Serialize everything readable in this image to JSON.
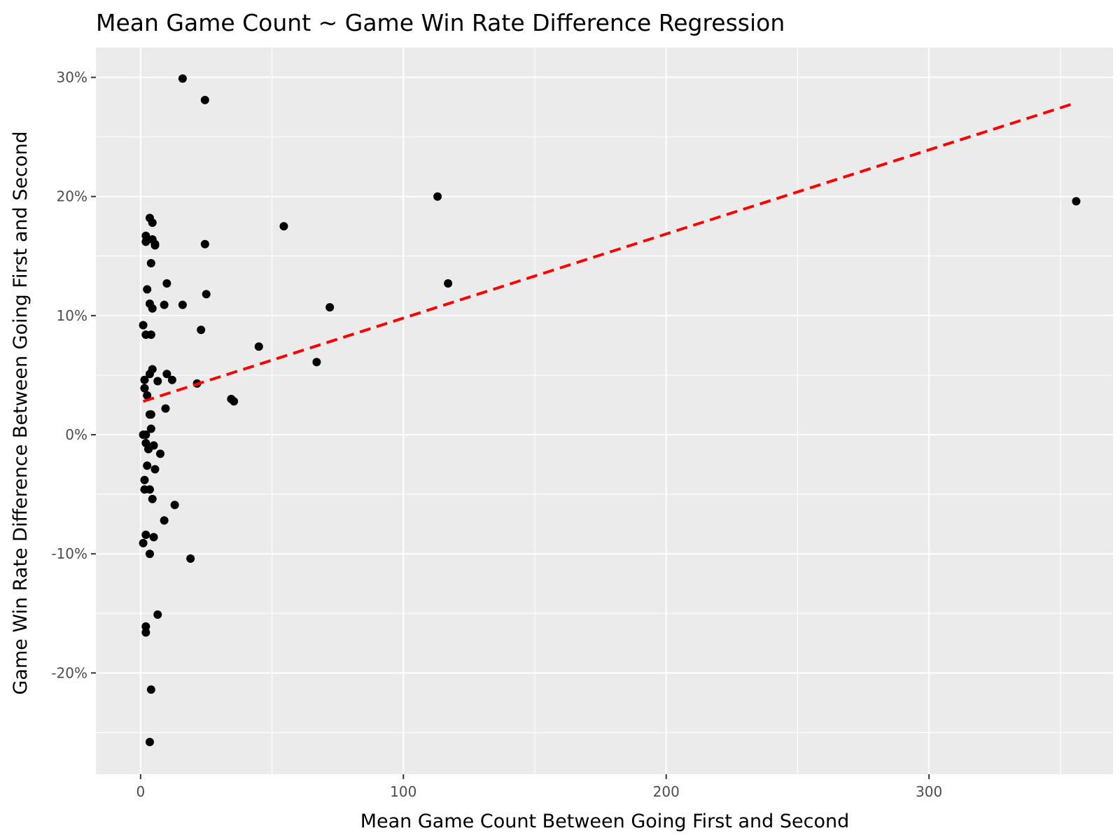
{
  "chart_data": {
    "type": "scatter",
    "title": "Mean Game Count ~ Game Win Rate Difference Regression",
    "xlabel": "Mean Game Count Between Going First and Second",
    "ylabel": "Game Win Rate Difference Between Going First and Second",
    "xlim": [
      -17,
      370
    ],
    "ylim": [
      -28.5,
      32.5
    ],
    "x_ticks": [
      0,
      100,
      200,
      300
    ],
    "x_minor_ticks": [
      50,
      150,
      250,
      350
    ],
    "y_ticks": [
      -20,
      -10,
      0,
      10,
      20,
      30
    ],
    "y_tick_labels": [
      "-20%",
      "-10%",
      "0%",
      "10%",
      "20%",
      "30%"
    ],
    "y_minor_ticks": [
      -25,
      -15,
      -5,
      5,
      15,
      25
    ],
    "grid": true,
    "panel_background": "#ebebeb",
    "grid_color": "#ffffff",
    "point_color": "#000000",
    "points": [
      [
        16,
        29.9
      ],
      [
        24.5,
        28.1
      ],
      [
        113,
        20
      ],
      [
        356,
        19.6
      ],
      [
        54.5,
        17.5
      ],
      [
        3.5,
        18.2
      ],
      [
        4.5,
        17.8
      ],
      [
        2,
        16.7
      ],
      [
        4.5,
        16.4
      ],
      [
        2,
        16.2
      ],
      [
        5.5,
        16.0
      ],
      [
        5.5,
        15.9
      ],
      [
        24.5,
        16.0
      ],
      [
        4,
        14.4
      ],
      [
        10,
        12.7
      ],
      [
        117,
        12.7
      ],
      [
        2.5,
        12.2
      ],
      [
        25,
        11.8
      ],
      [
        3.5,
        11.0
      ],
      [
        9,
        10.9
      ],
      [
        16,
        10.9
      ],
      [
        72,
        10.7
      ],
      [
        4.5,
        10.6
      ],
      [
        1,
        9.2
      ],
      [
        23,
        8.8
      ],
      [
        2,
        8.4
      ],
      [
        4,
        8.4
      ],
      [
        45,
        7.4
      ],
      [
        67,
        6.1
      ],
      [
        4.5,
        5.5
      ],
      [
        3.5,
        5.1
      ],
      [
        10,
        5.1
      ],
      [
        1.5,
        4.6
      ],
      [
        12,
        4.6
      ],
      [
        6.5,
        4.5
      ],
      [
        21.5,
        4.3
      ],
      [
        1.5,
        3.9
      ],
      [
        2.5,
        3.3
      ],
      [
        34.5,
        3.0
      ],
      [
        35.5,
        2.8
      ],
      [
        9.5,
        2.2
      ],
      [
        3.5,
        1.7
      ],
      [
        4,
        1.7
      ],
      [
        4,
        0.5
      ],
      [
        1,
        0.0
      ],
      [
        2,
        0.0
      ],
      [
        2,
        -0.7
      ],
      [
        3,
        -1.2
      ],
      [
        5,
        -0.9
      ],
      [
        3,
        -1.2
      ],
      [
        7.5,
        -1.6
      ],
      [
        2.5,
        -2.6
      ],
      [
        5.5,
        -2.9
      ],
      [
        1.5,
        -3.8
      ],
      [
        1.5,
        -4.6
      ],
      [
        3.5,
        -4.6
      ],
      [
        4.5,
        -5.4
      ],
      [
        13,
        -5.9
      ],
      [
        9,
        -7.2
      ],
      [
        2,
        -8.4
      ],
      [
        5,
        -8.6
      ],
      [
        1,
        -9.1
      ],
      [
        3.5,
        -10.0
      ],
      [
        19,
        -10.4
      ],
      [
        6.5,
        -15.1
      ],
      [
        2,
        -16.1
      ],
      [
        2,
        -16.6
      ],
      [
        4,
        -21.4
      ],
      [
        3.5,
        -25.8
      ]
    ],
    "regression": {
      "style": "dashed",
      "color": "#ff0000",
      "start": [
        1,
        2.8
      ],
      "end": [
        355,
        27.8
      ]
    }
  }
}
